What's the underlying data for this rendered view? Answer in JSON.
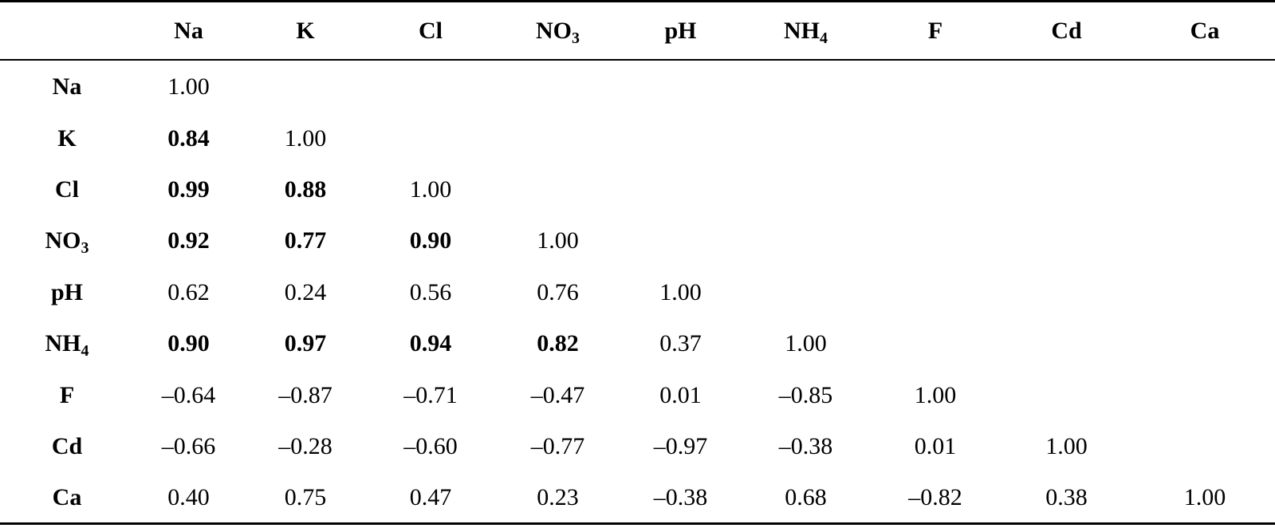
{
  "table": {
    "columns": [
      {
        "base": "Na",
        "sub": ""
      },
      {
        "base": "K",
        "sub": ""
      },
      {
        "base": "Cl",
        "sub": ""
      },
      {
        "base": "NO",
        "sub": "3"
      },
      {
        "base": "pH",
        "sub": ""
      },
      {
        "base": "NH",
        "sub": "4"
      },
      {
        "base": "F",
        "sub": ""
      },
      {
        "base": "Cd",
        "sub": ""
      },
      {
        "base": "Ca",
        "sub": ""
      }
    ],
    "rows": [
      {
        "label": {
          "base": "Na",
          "sub": ""
        },
        "cells": [
          {
            "v": "1.00",
            "b": false
          },
          {
            "v": "",
            "b": false
          },
          {
            "v": "",
            "b": false
          },
          {
            "v": "",
            "b": false
          },
          {
            "v": "",
            "b": false
          },
          {
            "v": "",
            "b": false
          },
          {
            "v": "",
            "b": false
          },
          {
            "v": "",
            "b": false
          },
          {
            "v": "",
            "b": false
          }
        ]
      },
      {
        "label": {
          "base": "K",
          "sub": ""
        },
        "cells": [
          {
            "v": "0.84",
            "b": true
          },
          {
            "v": "1.00",
            "b": false
          },
          {
            "v": "",
            "b": false
          },
          {
            "v": "",
            "b": false
          },
          {
            "v": "",
            "b": false
          },
          {
            "v": "",
            "b": false
          },
          {
            "v": "",
            "b": false
          },
          {
            "v": "",
            "b": false
          },
          {
            "v": "",
            "b": false
          }
        ]
      },
      {
        "label": {
          "base": "Cl",
          "sub": ""
        },
        "cells": [
          {
            "v": "0.99",
            "b": true
          },
          {
            "v": "0.88",
            "b": true
          },
          {
            "v": "1.00",
            "b": false
          },
          {
            "v": "",
            "b": false
          },
          {
            "v": "",
            "b": false
          },
          {
            "v": "",
            "b": false
          },
          {
            "v": "",
            "b": false
          },
          {
            "v": "",
            "b": false
          },
          {
            "v": "",
            "b": false
          }
        ]
      },
      {
        "label": {
          "base": "NO",
          "sub": "3"
        },
        "cells": [
          {
            "v": "0.92",
            "b": true
          },
          {
            "v": "0.77",
            "b": true
          },
          {
            "v": "0.90",
            "b": true
          },
          {
            "v": "1.00",
            "b": false
          },
          {
            "v": "",
            "b": false
          },
          {
            "v": "",
            "b": false
          },
          {
            "v": "",
            "b": false
          },
          {
            "v": "",
            "b": false
          },
          {
            "v": "",
            "b": false
          }
        ]
      },
      {
        "label": {
          "base": "pH",
          "sub": ""
        },
        "cells": [
          {
            "v": "0.62",
            "b": false
          },
          {
            "v": "0.24",
            "b": false
          },
          {
            "v": "0.56",
            "b": false
          },
          {
            "v": "0.76",
            "b": false
          },
          {
            "v": "1.00",
            "b": false
          },
          {
            "v": "",
            "b": false
          },
          {
            "v": "",
            "b": false
          },
          {
            "v": "",
            "b": false
          },
          {
            "v": "",
            "b": false
          }
        ]
      },
      {
        "label": {
          "base": "NH",
          "sub": "4"
        },
        "cells": [
          {
            "v": "0.90",
            "b": true
          },
          {
            "v": "0.97",
            "b": true
          },
          {
            "v": "0.94",
            "b": true
          },
          {
            "v": "0.82",
            "b": true
          },
          {
            "v": "0.37",
            "b": false
          },
          {
            "v": "1.00",
            "b": false
          },
          {
            "v": "",
            "b": false
          },
          {
            "v": "",
            "b": false
          },
          {
            "v": "",
            "b": false
          }
        ]
      },
      {
        "label": {
          "base": "F",
          "sub": ""
        },
        "cells": [
          {
            "v": "–0.64",
            "b": false
          },
          {
            "v": "–0.87",
            "b": false
          },
          {
            "v": "–0.71",
            "b": false
          },
          {
            "v": "–0.47",
            "b": false
          },
          {
            "v": "0.01",
            "b": false
          },
          {
            "v": "–0.85",
            "b": false
          },
          {
            "v": "1.00",
            "b": false
          },
          {
            "v": "",
            "b": false
          },
          {
            "v": "",
            "b": false
          }
        ]
      },
      {
        "label": {
          "base": "Cd",
          "sub": ""
        },
        "cells": [
          {
            "v": "–0.66",
            "b": false
          },
          {
            "v": "–0.28",
            "b": false
          },
          {
            "v": "–0.60",
            "b": false
          },
          {
            "v": "–0.77",
            "b": false
          },
          {
            "v": "–0.97",
            "b": false
          },
          {
            "v": "–0.38",
            "b": false
          },
          {
            "v": "0.01",
            "b": false
          },
          {
            "v": "1.00",
            "b": false
          },
          {
            "v": "",
            "b": false
          }
        ]
      },
      {
        "label": {
          "base": "Ca",
          "sub": ""
        },
        "cells": [
          {
            "v": "0.40",
            "b": false
          },
          {
            "v": "0.75",
            "b": false
          },
          {
            "v": "0.47",
            "b": false
          },
          {
            "v": "0.23",
            "b": false
          },
          {
            "v": "–0.38",
            "b": false
          },
          {
            "v": "0.68",
            "b": false
          },
          {
            "v": "–0.82",
            "b": false
          },
          {
            "v": "0.38",
            "b": false
          },
          {
            "v": "1.00",
            "b": false
          }
        ]
      }
    ]
  }
}
